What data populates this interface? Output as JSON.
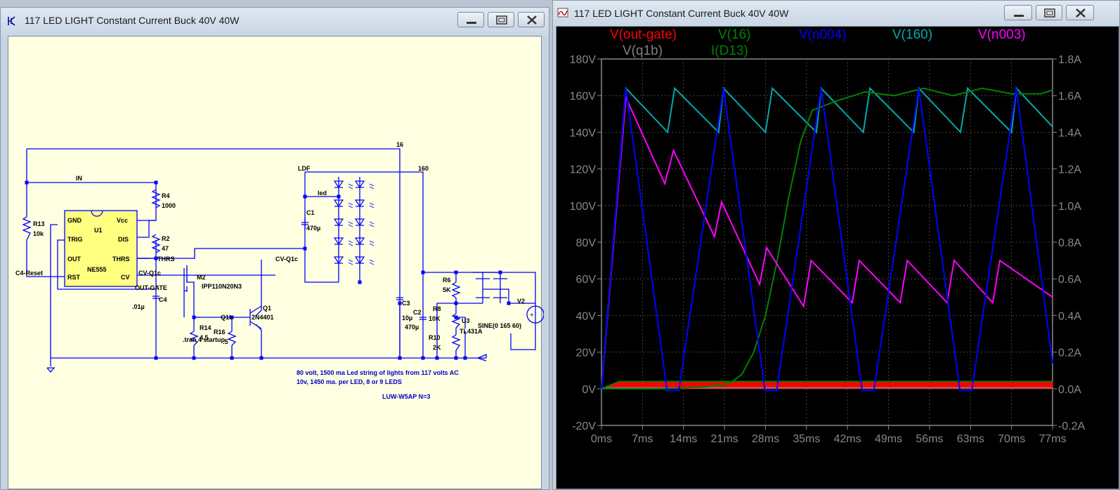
{
  "schematic_window": {
    "title": "117 LED LIGHT Constant Current Buck 40V 40W",
    "labels": {
      "net16": "16",
      "net160": "160",
      "in": "IN",
      "ldf": "LDF",
      "led": "led",
      "r4": "R4",
      "r4_val": "1000",
      "r2": "R2",
      "r2_val": "47",
      "r13": "R13",
      "r13_val": "10k",
      "u1": "U1",
      "ne555": "NE555",
      "gnd": "GND",
      "vcc": "Vcc",
      "trig": "TRIG",
      "dis": "DIS",
      "out": "OUT",
      "thrs": "THRS",
      "rst": "RST",
      "cv": "CV",
      "thrs_net": "THRS",
      "c4_reset": "C4-Reset",
      "cv_q1c": "CV-Q1c",
      "cv_q1c_2": "CV-Q1c",
      "out_gate": "OUT-GATE",
      "m2": "M2",
      "ipp": "IPP110N20N3",
      "c1": "C1",
      "c1_val": "470µ",
      "c4": "C4",
      "c4_val": ".01µ",
      "q1": "Q1",
      "q1_type": "2N4401",
      "q1b": "Q1b",
      "r14": "R14",
      "r14_val": "4.5",
      "r16": "R16",
      "r16_val": ".5",
      "tran": ".tran 4 startup",
      "c3": "C3",
      "c3_val": "10µ",
      "c2": "C2",
      "c2_val": "470µ",
      "r6": "R6",
      "r6_val": "5K",
      "r8": "R8",
      "r8_val": "10K",
      "u3": "U3",
      "tl431": "TL431A",
      "r10": "R10",
      "r10_val": "2K",
      "v2": "V2",
      "sine": "SINE(0 165 60)"
    },
    "notes": {
      "line1": "80 volt, 1500 ma Led string of lights from 117 volts AC",
      "line2": "10v, 1450 ma. per LED, 8 or 9 LEDS",
      "line3": "LUW-W5AP  N=3"
    }
  },
  "waveform_window": {
    "title": "117 LED LIGHT Constant Current Buck 40V 40W"
  },
  "chart_data": {
    "type": "line",
    "title": "",
    "xlabel": "",
    "ylabel": "",
    "x_ticks": [
      "0ms",
      "7ms",
      "14ms",
      "21ms",
      "28ms",
      "35ms",
      "42ms",
      "49ms",
      "56ms",
      "63ms",
      "70ms",
      "77ms"
    ],
    "y_ticks_left": [
      "-20V",
      "0V",
      "20V",
      "40V",
      "60V",
      "80V",
      "100V",
      "120V",
      "140V",
      "160V",
      "180V"
    ],
    "y_ticks_right": [
      "-0.2A",
      "0.0A",
      "0.2A",
      "0.4A",
      "0.6A",
      "0.8A",
      "1.0A",
      "1.2A",
      "1.4A",
      "1.6A",
      "1.8A"
    ],
    "xlim": [
      0,
      77
    ],
    "ylim_left": [
      -20,
      180
    ],
    "ylim_right": [
      -0.2,
      1.8
    ],
    "grid": true,
    "series": [
      {
        "name": "V(out-gate)",
        "color": "#ff0000",
        "axis": "left",
        "kind": "band",
        "x": [
          0,
          3,
          77
        ],
        "low": [
          0,
          0,
          0
        ],
        "high": [
          0,
          4,
          4
        ]
      },
      {
        "name": "V(q1b)",
        "color": "#808080",
        "axis": "left",
        "x": [
          0,
          77
        ],
        "y": [
          0.5,
          0.5
        ]
      },
      {
        "name": "V(16)",
        "color": "#008000",
        "axis": "left",
        "x": [
          0,
          3,
          77
        ],
        "y": [
          0,
          4,
          4
        ]
      },
      {
        "name": "I(D13)",
        "color": "#008000",
        "axis": "right",
        "x": [
          0,
          10,
          18,
          22,
          24,
          26,
          28,
          30,
          32,
          34,
          36,
          40,
          45,
          50,
          55,
          60,
          65,
          70,
          75,
          77
        ],
        "y": [
          0,
          0,
          0.01,
          0.03,
          0.08,
          0.2,
          0.4,
          0.7,
          1.05,
          1.35,
          1.52,
          1.57,
          1.62,
          1.6,
          1.64,
          1.6,
          1.64,
          1.61,
          1.61,
          1.63
        ]
      },
      {
        "name": "V(n004)",
        "color": "#0000ff",
        "axis": "left",
        "x": [
          0,
          4.17,
          11.2,
          13.2,
          20.83,
          27.9,
          29.9,
          37.5,
          44.5,
          46.5,
          54.17,
          61.2,
          63.2,
          70.83,
          77
        ],
        "y": [
          0,
          164,
          -1,
          -1,
          164,
          -1,
          -1,
          164,
          -1,
          -1,
          164,
          -1,
          -1,
          164,
          14
        ]
      },
      {
        "name": "V(160)",
        "color": "#00aaaa",
        "axis": "left",
        "x": [
          0,
          4.17,
          11.3,
          12.5,
          20.0,
          20.83,
          28.0,
          29.17,
          36.7,
          37.5,
          44.7,
          45.83,
          53.3,
          54.17,
          61.3,
          62.5,
          70.0,
          70.83,
          77
        ],
        "y": [
          0,
          164,
          140,
          164,
          140,
          164,
          140,
          164,
          140,
          164,
          140,
          164,
          140,
          164,
          140,
          164,
          140,
          164,
          143
        ]
      },
      {
        "name": "V(n003)",
        "color": "#ff00ff",
        "axis": "left",
        "x": [
          0,
          4.17,
          10.8,
          12.3,
          19.3,
          20.5,
          27.0,
          28.2,
          34.5,
          35.8,
          42.8,
          44.0,
          51.0,
          52.2,
          59.0,
          60.2,
          66.8,
          68.0,
          77
        ],
        "y": [
          0,
          159,
          112,
          130,
          83,
          102,
          57,
          77,
          45,
          70,
          47,
          70,
          47,
          70,
          47,
          70,
          47,
          70,
          50
        ]
      }
    ]
  }
}
